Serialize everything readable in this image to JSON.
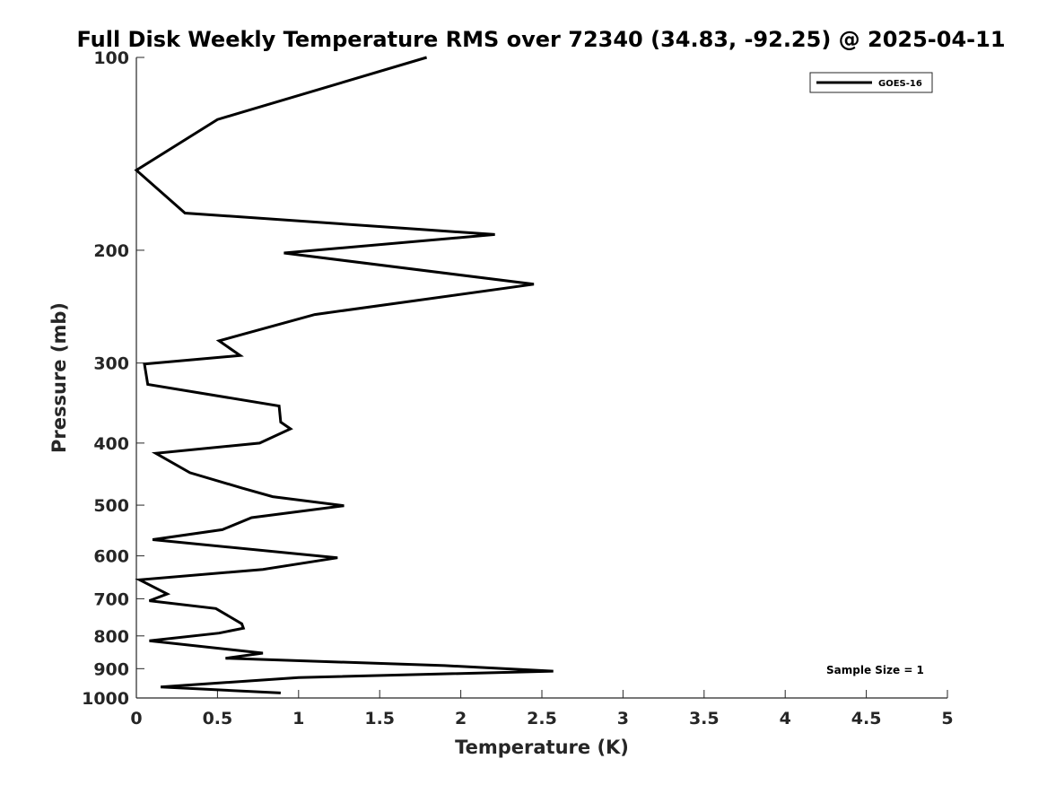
{
  "chart_data": {
    "type": "line",
    "title": "Full Disk Weekly Temperature RMS over 72340 (34.83, -92.25) @ 2025-04-11",
    "xlabel": "Temperature (K)",
    "ylabel": "Pressure (mb)",
    "xlim": [
      0,
      5
    ],
    "ylim": [
      100,
      1000
    ],
    "y_scale": "log",
    "y_reversed": true,
    "grid": false,
    "legend_position": "top-right",
    "x_ticks": [
      "0",
      "0.5",
      "1",
      "1.5",
      "2",
      "2.5",
      "3",
      "3.5",
      "4",
      "4.5",
      "5"
    ],
    "y_ticks": [
      "100",
      "200",
      "300",
      "400",
      "500",
      "600",
      "700",
      "800",
      "900",
      "1000"
    ],
    "series": [
      {
        "name": "GOES-16",
        "color": "#000000",
        "points": [
          [
            1.79,
            100
          ],
          [
            0.5,
            125
          ],
          [
            0.0,
            150
          ],
          [
            0.3,
            175
          ],
          [
            2.21,
            189
          ],
          [
            0.91,
            202
          ],
          [
            2.45,
            226
          ],
          [
            1.1,
            252
          ],
          [
            0.51,
            277
          ],
          [
            0.64,
            292
          ],
          [
            0.05,
            301
          ],
          [
            0.07,
            324
          ],
          [
            0.88,
            350
          ],
          [
            0.89,
            371
          ],
          [
            0.95,
            380
          ],
          [
            0.76,
            400
          ],
          [
            0.12,
            415
          ],
          [
            0.33,
            445
          ],
          [
            0.65,
            470
          ],
          [
            0.84,
            485
          ],
          [
            1.28,
            501
          ],
          [
            0.71,
            523
          ],
          [
            0.53,
            546
          ],
          [
            0.1,
            566
          ],
          [
            1.24,
            604
          ],
          [
            0.78,
            630
          ],
          [
            0.02,
            654
          ],
          [
            0.19,
            688
          ],
          [
            0.08,
            705
          ],
          [
            0.49,
            725
          ],
          [
            0.65,
            766
          ],
          [
            0.66,
            778
          ],
          [
            0.51,
            792
          ],
          [
            0.08,
            814
          ],
          [
            0.78,
            851
          ],
          [
            0.55,
            867
          ],
          [
            1.9,
            890
          ],
          [
            2.57,
            908
          ],
          [
            1.0,
            929
          ],
          [
            0.15,
            961
          ],
          [
            0.89,
            982
          ]
        ]
      }
    ],
    "annotations": [
      "Sample Size = 1"
    ]
  }
}
